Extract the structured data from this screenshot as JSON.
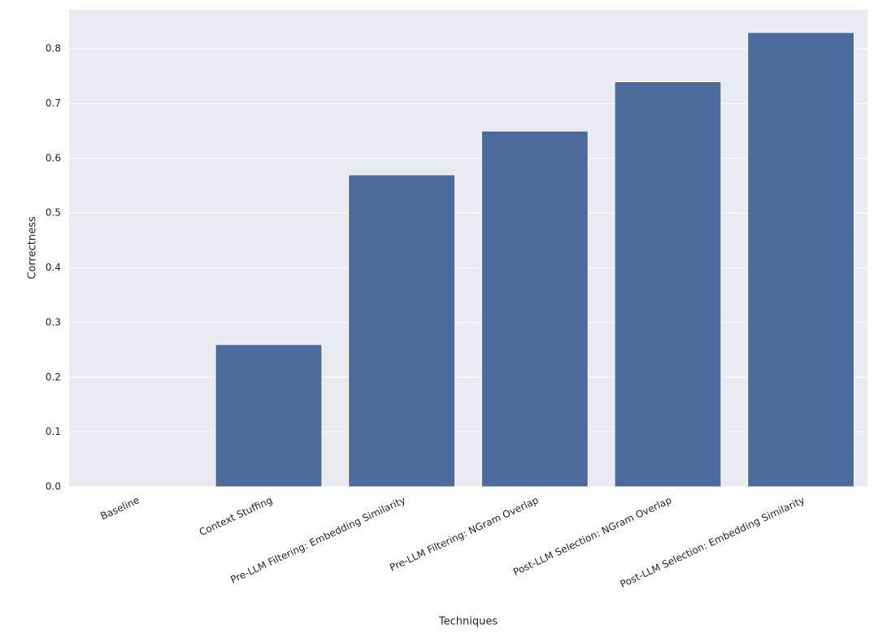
{
  "chart_data": {
    "type": "bar",
    "x_label": "Techniques",
    "y_label": "Correctness",
    "categories": [
      "Baseline",
      "Context Stuffing",
      "Pre-LLM Filtering: Embedding Similarity",
      "Pre-LLM Filtering: NGram Overlap",
      "Post-LLM Selection: NGram Overlap",
      "Post-LLM Selection: Embedding Similarity"
    ],
    "values": [
      0,
      0.26,
      0.57,
      0.65,
      0.74,
      0.83
    ],
    "color": "#4c6a9c",
    "ylim": [
      0,
      0.8715
    ],
    "yticks": [
      {
        "value": 0,
        "label": "0.0"
      },
      0.1,
      0.2,
      0.3,
      0.4,
      0.5,
      0.6,
      0.7,
      0.8
    ],
    "grid": true
  }
}
